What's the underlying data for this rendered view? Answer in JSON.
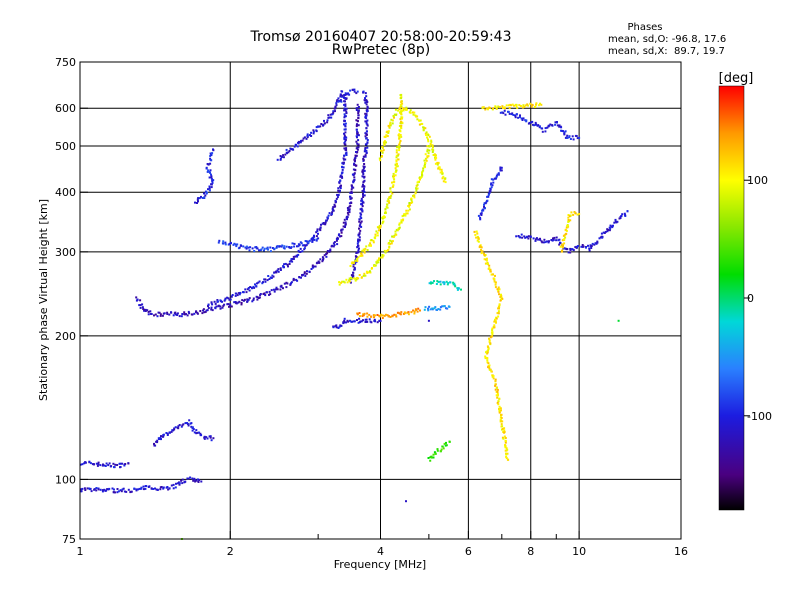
{
  "chart_data": {
    "type": "scatter",
    "title": "Tromsø 20160407 20:58:00-20:59:43",
    "subtitle": "RwPretec (8p)",
    "xlabel": "Frequency [MHz]",
    "ylabel": "Stationary phase Virtual Height [km]",
    "x_scale": "log",
    "y_scale": "log",
    "xlim": [
      1,
      16
    ],
    "ylim": [
      75,
      750
    ],
    "x_ticks": [
      1,
      2,
      4,
      6,
      8,
      10,
      16
    ],
    "x_tick_labels": [
      "1",
      "2",
      "4",
      "6",
      "8",
      "10",
      "16"
    ],
    "x_minor_ticks": [
      3,
      5,
      7,
      9
    ],
    "y_ticks": [
      75,
      100,
      200,
      300,
      400,
      500,
      600,
      750
    ],
    "y_tick_labels": [
      "75",
      "100",
      "200",
      "300",
      "400",
      "500",
      "600",
      "750"
    ],
    "grid_x": [
      2,
      4,
      6,
      8,
      10
    ],
    "grid_y": [
      100,
      200,
      300,
      400,
      500,
      600
    ],
    "info": {
      "heading": "Phases",
      "line1": "mean, sd,O: -96.8, 17.6",
      "line2": "mean, sd,X:  89.7, 19.7"
    },
    "colorbar": {
      "label": "[deg]",
      "range": [
        -180,
        180
      ],
      "ticks": [
        100,
        0,
        -100
      ],
      "tick_labels": [
        "100",
        "0",
        "-100"
      ],
      "colormap": [
        {
          "v": -180,
          "c": "#000000"
        },
        {
          "v": -150,
          "c": "#4a0080"
        },
        {
          "v": -100,
          "c": "#1c1ce0"
        },
        {
          "v": -60,
          "c": "#2a80ff"
        },
        {
          "v": -20,
          "c": "#00d8d8"
        },
        {
          "v": 20,
          "c": "#00dd00"
        },
        {
          "v": 60,
          "c": "#88e800"
        },
        {
          "v": 100,
          "c": "#ffff00"
        },
        {
          "v": 140,
          "c": "#ff9900"
        },
        {
          "v": 180,
          "c": "#ff0000"
        }
      ]
    },
    "series": [
      {
        "phase": -110,
        "points": [
          [
            1.0,
            108
          ],
          [
            1.05,
            108
          ],
          [
            1.1,
            107.5
          ],
          [
            1.15,
            107
          ],
          [
            1.2,
            107
          ],
          [
            1.25,
            108
          ]
        ]
      },
      {
        "phase": -110,
        "points": [
          [
            1.0,
            95
          ],
          [
            1.05,
            95
          ],
          [
            1.1,
            95
          ],
          [
            1.15,
            95
          ],
          [
            1.2,
            94.5
          ],
          [
            1.25,
            95
          ],
          [
            1.3,
            95
          ],
          [
            1.35,
            96
          ],
          [
            1.4,
            96
          ],
          [
            1.45,
            96
          ],
          [
            1.5,
            96
          ],
          [
            1.55,
            97
          ],
          [
            1.6,
            99
          ],
          [
            1.65,
            100
          ],
          [
            1.7,
            100
          ],
          [
            1.75,
            99
          ]
        ]
      },
      {
        "phase": -110,
        "points": [
          [
            1.4,
            118
          ],
          [
            1.45,
            122
          ],
          [
            1.5,
            125
          ],
          [
            1.55,
            128
          ],
          [
            1.6,
            130
          ],
          [
            1.65,
            132
          ],
          [
            1.7,
            126
          ],
          [
            1.75,
            124
          ],
          [
            1.8,
            122
          ],
          [
            1.85,
            122
          ]
        ]
      },
      {
        "phase": -120,
        "points": [
          [
            1.3,
            240
          ],
          [
            1.35,
            225
          ],
          [
            1.4,
            222
          ],
          [
            1.5,
            222
          ],
          [
            1.6,
            222
          ],
          [
            1.7,
            224
          ],
          [
            1.8,
            226
          ],
          [
            1.9,
            230
          ],
          [
            2.0,
            232
          ],
          [
            2.2,
            238
          ],
          [
            2.4,
            246
          ],
          [
            2.6,
            256
          ],
          [
            2.8,
            268
          ],
          [
            3.0,
            284
          ],
          [
            3.2,
            305
          ],
          [
            3.35,
            330
          ],
          [
            3.45,
            360
          ],
          [
            3.5,
            400
          ],
          [
            3.55,
            450
          ],
          [
            3.6,
            500
          ],
          [
            3.6,
            560
          ],
          [
            3.6,
            610
          ]
        ]
      },
      {
        "phase": -110,
        "points": [
          [
            1.8,
            232
          ],
          [
            2.0,
            240
          ],
          [
            2.2,
            252
          ],
          [
            2.4,
            266
          ],
          [
            2.6,
            282
          ],
          [
            2.8,
            304
          ],
          [
            3.0,
            330
          ],
          [
            3.2,
            365
          ],
          [
            3.3,
            400
          ],
          [
            3.35,
            440
          ],
          [
            3.4,
            480
          ],
          [
            3.4,
            530
          ],
          [
            3.4,
            580
          ],
          [
            3.4,
            640
          ]
        ]
      },
      {
        "phase": -90,
        "points": [
          [
            1.9,
            315
          ],
          [
            2.0,
            312
          ],
          [
            2.1,
            306
          ],
          [
            2.2,
            304
          ],
          [
            2.4,
            304
          ],
          [
            2.6,
            308
          ],
          [
            2.8,
            312
          ],
          [
            3.0,
            320
          ]
        ]
      },
      {
        "phase": -110,
        "points": [
          [
            2.5,
            470
          ],
          [
            2.7,
            500
          ],
          [
            2.9,
            530
          ],
          [
            3.1,
            560
          ],
          [
            3.25,
            600
          ],
          [
            3.3,
            630
          ],
          [
            3.35,
            650
          ]
        ]
      },
      {
        "phase": -100,
        "points": [
          [
            1.7,
            380
          ],
          [
            1.8,
            400
          ],
          [
            1.85,
            420
          ],
          [
            1.8,
            450
          ],
          [
            1.85,
            490
          ]
        ]
      },
      {
        "phase": -115,
        "points": [
          [
            3.5,
            260
          ],
          [
            3.6,
            300
          ],
          [
            3.65,
            350
          ],
          [
            3.7,
            400
          ],
          [
            3.7,
            450
          ],
          [
            3.75,
            500
          ],
          [
            3.75,
            560
          ],
          [
            3.75,
            620
          ],
          [
            3.7,
            650
          ]
        ]
      },
      {
        "phase": -105,
        "points": [
          [
            3.3,
            620
          ],
          [
            3.4,
            640
          ],
          [
            3.5,
            650
          ],
          [
            3.6,
            650
          ]
        ]
      },
      {
        "phase": 95,
        "points": [
          [
            3.3,
            258
          ],
          [
            3.5,
            262
          ],
          [
            3.7,
            268
          ],
          [
            3.9,
            280
          ],
          [
            4.1,
            300
          ],
          [
            4.3,
            330
          ],
          [
            4.5,
            360
          ],
          [
            4.7,
            400
          ],
          [
            4.9,
            450
          ],
          [
            5.0,
            500
          ]
        ]
      },
      {
        "phase": 100,
        "points": [
          [
            3.5,
            280
          ],
          [
            3.7,
            300
          ],
          [
            3.9,
            320
          ],
          [
            4.05,
            350
          ],
          [
            4.2,
            400
          ],
          [
            4.3,
            450
          ],
          [
            4.35,
            500
          ],
          [
            4.4,
            550
          ],
          [
            4.4,
            600
          ],
          [
            4.4,
            640
          ]
        ]
      },
      {
        "phase": 100,
        "points": [
          [
            4.0,
            470
          ],
          [
            4.1,
            520
          ],
          [
            4.2,
            560
          ],
          [
            4.3,
            590
          ],
          [
            4.5,
            600
          ],
          [
            4.7,
            580
          ],
          [
            4.8,
            560
          ],
          [
            5.0,
            520
          ],
          [
            5.2,
            460
          ],
          [
            5.4,
            420
          ]
        ]
      },
      {
        "phase": 140,
        "points": [
          [
            3.6,
            222
          ],
          [
            3.8,
            221
          ],
          [
            4.0,
            220
          ],
          [
            4.2,
            220
          ],
          [
            4.4,
            222
          ],
          [
            4.6,
            224
          ],
          [
            4.8,
            226
          ]
        ]
      },
      {
        "phase": -50,
        "points": [
          [
            4.9,
            228
          ],
          [
            5.1,
            228
          ],
          [
            5.3,
            229
          ],
          [
            5.5,
            230
          ]
        ]
      },
      {
        "phase": -110,
        "points": [
          [
            3.2,
            210
          ],
          [
            3.3,
            208
          ],
          [
            3.4,
            215
          ],
          [
            4.0,
            215
          ]
        ]
      },
      {
        "phase": -20,
        "points": [
          [
            5.0,
            260
          ],
          [
            5.2,
            258
          ],
          [
            5.4,
            258
          ],
          [
            5.6,
            256
          ],
          [
            5.8,
            250
          ]
        ]
      },
      {
        "phase": -100,
        "points": [
          [
            6.3,
            350
          ],
          [
            6.5,
            380
          ],
          [
            6.7,
            420
          ],
          [
            7.0,
            450
          ]
        ]
      },
      {
        "phase": -110,
        "points": [
          [
            7.5,
            325
          ],
          [
            8.0,
            320
          ],
          [
            8.5,
            315
          ],
          [
            9.0,
            320
          ],
          [
            9.5,
            300
          ],
          [
            10.0,
            310
          ],
          [
            10.5,
            305
          ],
          [
            12.5,
            365
          ]
        ]
      },
      {
        "phase": 110,
        "points": [
          [
            6.2,
            330
          ],
          [
            6.4,
            300
          ],
          [
            6.6,
            280
          ],
          [
            6.8,
            260
          ],
          [
            7.0,
            240
          ],
          [
            6.5,
            180
          ],
          [
            6.8,
            160
          ],
          [
            7.2,
            110
          ],
          [
            6.4,
            600
          ],
          [
            8.4,
            610
          ],
          [
            9.2,
            300
          ],
          [
            9.6,
            360
          ],
          [
            10.0,
            360
          ]
        ]
      },
      {
        "phase": -100,
        "points": [
          [
            7.0,
            590
          ],
          [
            7.5,
            580
          ],
          [
            8.0,
            560
          ],
          [
            8.5,
            540
          ],
          [
            9.0,
            560
          ],
          [
            9.5,
            520
          ],
          [
            10.0,
            520
          ],
          [
            4.5,
            90
          ],
          [
            5.0,
            215
          ]
        ]
      },
      {
        "phase": 30,
        "points": [
          [
            12.0,
            215
          ],
          [
            1.6,
            75
          ],
          [
            5.0,
            110
          ],
          [
            5.5,
            120
          ]
        ]
      }
    ]
  }
}
